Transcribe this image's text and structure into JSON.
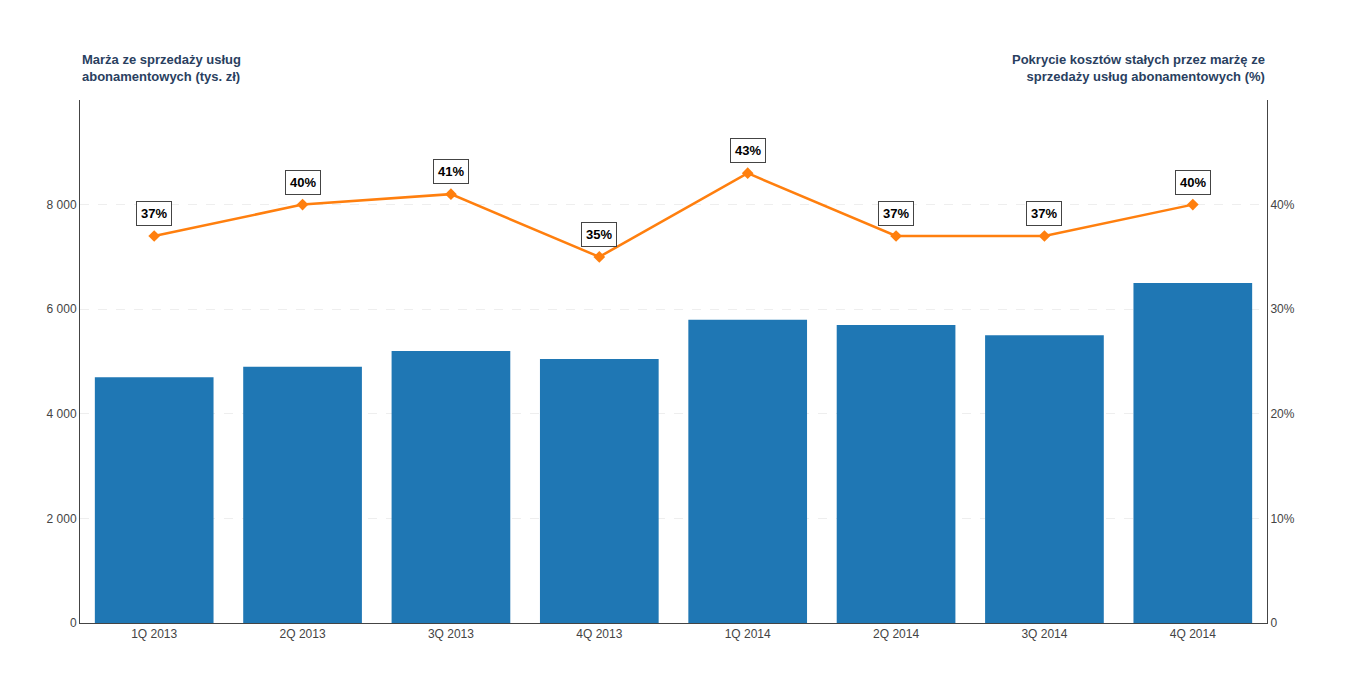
{
  "chart_data": {
    "type": "bar",
    "ylabel": "Marża ze sprzedaży usług\nabonamentowych (tys. zł)",
    "y2label": "Pokrycie kosztów stałych przez marżę ze\nsprzedaży usług abonamentowych (%)",
    "categories": [
      "1Q 2013",
      "2Q 2013",
      "3Q 2013",
      "4Q 2013",
      "1Q 2014",
      "2Q 2014",
      "3Q 2014",
      "4Q 2014"
    ],
    "series": [
      {
        "type": "bar",
        "values": [
          4700,
          4900,
          5200,
          5050,
          5800,
          5700,
          5500,
          6500
        ]
      },
      {
        "type": "line",
        "axis": "y2",
        "marker": "diamond",
        "line_style": "solid",
        "values": [
          0.37,
          0.4,
          0.41,
          0.35,
          0.43,
          0.37,
          0.37,
          0.4
        ],
        "value_labels": [
          "37%",
          "40%",
          "41%",
          "35%",
          "43%",
          "37%",
          "37%",
          "40%"
        ]
      }
    ],
    "ylim": [
      0,
      10000
    ],
    "yticks": [
      0,
      {
        "value": 2000,
        "label": "2 000"
      },
      {
        "value": 4000,
        "label": "4 000"
      },
      {
        "value": 6000,
        "label": "6 000"
      },
      {
        "value": 8000,
        "label": "8 000"
      }
    ],
    "y2lim": [
      0,
      0.5
    ],
    "y2ticks": [
      0,
      {
        "value": 0.1,
        "label": "10%"
      },
      {
        "value": 0.2,
        "label": "20%"
      },
      {
        "value": 0.3,
        "label": "30%"
      },
      {
        "value": 0.4,
        "label": "40%"
      }
    ],
    "grid": true
  }
}
